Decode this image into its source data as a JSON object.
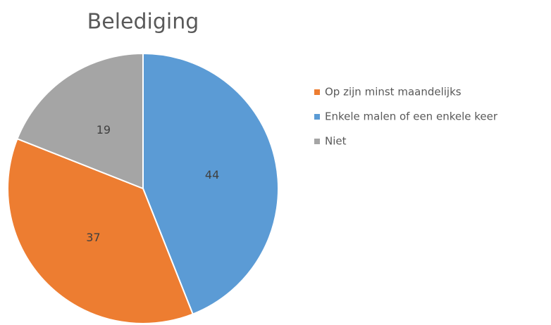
{
  "chart_data": {
    "type": "pie",
    "title": "Belediging",
    "categories": [
      "Op zijn  minst maandelijks",
      "Enkele malen of een enkele keer",
      "Niet"
    ],
    "values": [
      37,
      44,
      19
    ],
    "colors": [
      "#ed7d31",
      "#5b9bd5",
      "#a5a5a5"
    ],
    "legend": "right"
  }
}
